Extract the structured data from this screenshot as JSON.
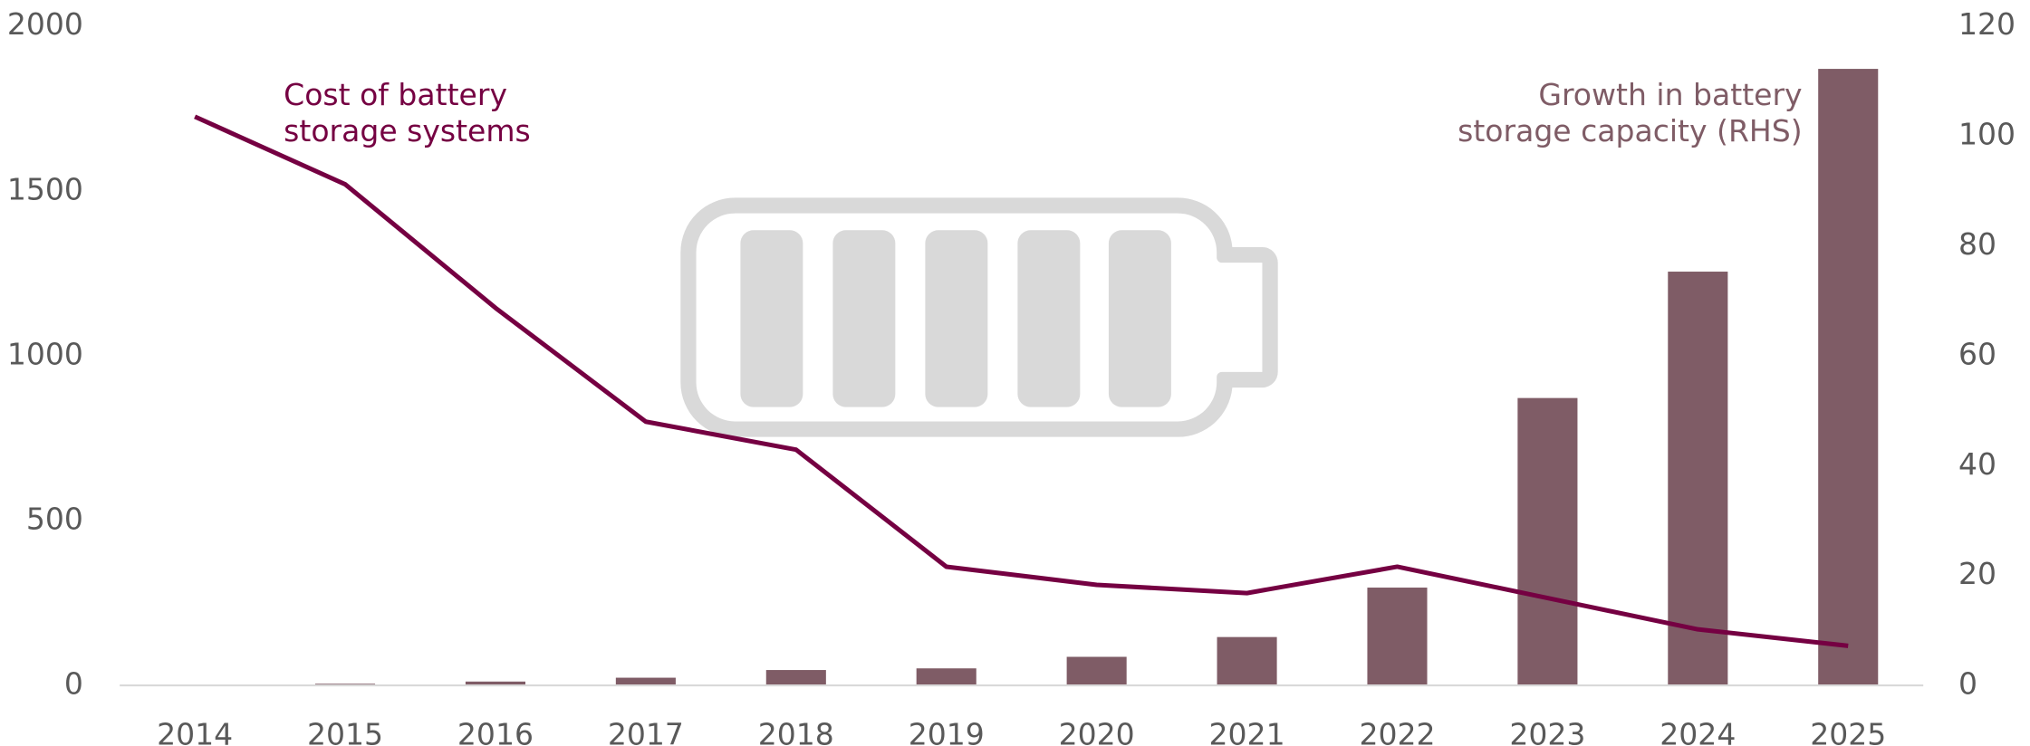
{
  "chart_data": {
    "type": "bar-line",
    "categories": [
      "2014",
      "2015",
      "2016",
      "2017",
      "2018",
      "2019",
      "2020",
      "2021",
      "2022",
      "2023",
      "2024",
      "2025"
    ],
    "series": [
      {
        "name": "Cost of battery storage systems",
        "type": "line",
        "axis": "y",
        "color": "#750042",
        "values": [
          1725,
          1520,
          1145,
          800,
          715,
          360,
          305,
          280,
          360,
          265,
          170,
          120
        ]
      },
      {
        "name": "Growth in battery storage capacity (RHS)",
        "type": "bar",
        "axis": "y2",
        "color": "#7f5c66",
        "values": [
          0.1,
          0.3,
          0.7,
          1.4,
          2.8,
          3.1,
          5.2,
          8.8,
          17.8,
          52.3,
          75.3,
          112.2
        ]
      }
    ],
    "annotations": [
      {
        "lines": [
          "Cost of battery",
          "storage systems"
        ]
      },
      {
        "lines": [
          "Growth in battery",
          "storage capacity (RHS)"
        ]
      }
    ],
    "ylim": [
      0,
      2000
    ],
    "yticks": [
      0,
      500,
      1000,
      1500,
      2000
    ],
    "y2lim": [
      0,
      120
    ],
    "y2ticks": [
      0,
      20,
      40,
      60,
      80,
      100,
      120
    ]
  }
}
